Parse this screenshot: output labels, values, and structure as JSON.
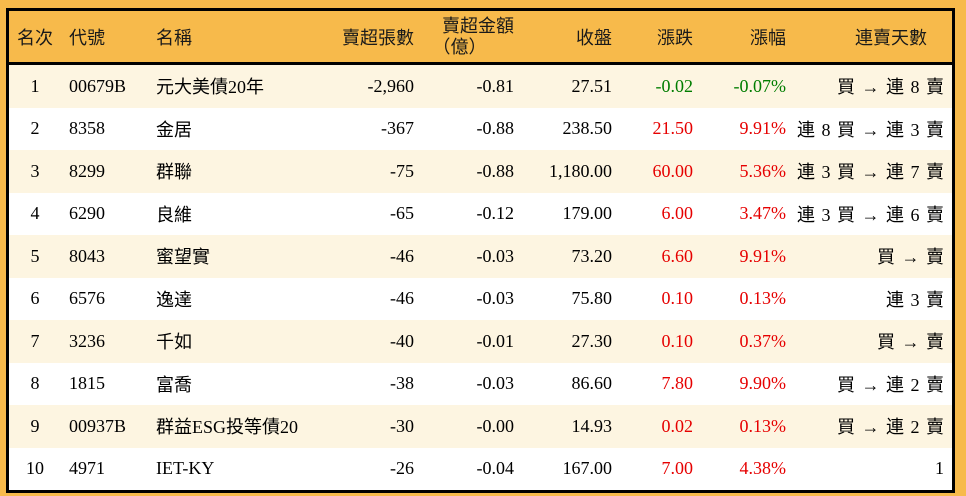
{
  "colors": {
    "background_orange": "#f7ba4b",
    "row_alt_cream": "#fdf5e1",
    "row_white": "#ffffff",
    "border_black": "#000000",
    "up_red": "#e60000",
    "down_green": "#007d00"
  },
  "table": {
    "headers": {
      "rank": "名次",
      "code": "代號",
      "name": "名稱",
      "sell_volume": "賣超張數",
      "sell_amount_line1": "賣超金額",
      "sell_amount_line2": "（億）",
      "close": "收盤",
      "change": "漲跌",
      "change_pct": "漲幅",
      "streak": "連賣天數"
    },
    "rows": [
      {
        "rank": "1",
        "code": "00679B",
        "name": "元大美債20年",
        "sell_volume": "-2,960",
        "sell_amount": "-0.81",
        "close": "27.51",
        "change": "-0.02",
        "change_pct": "-0.07%",
        "streak": "買 → 連 8 賣",
        "change_color": "green"
      },
      {
        "rank": "2",
        "code": "8358",
        "name": "金居",
        "sell_volume": "-367",
        "sell_amount": "-0.88",
        "close": "238.50",
        "change": "21.50",
        "change_pct": "9.91%",
        "streak": "連 8 買 → 連 3 賣",
        "change_color": "red"
      },
      {
        "rank": "3",
        "code": "8299",
        "name": "群聯",
        "sell_volume": "-75",
        "sell_amount": "-0.88",
        "close": "1,180.00",
        "change": "60.00",
        "change_pct": "5.36%",
        "streak": "連 3 買 → 連 7 賣",
        "change_color": "red"
      },
      {
        "rank": "4",
        "code": "6290",
        "name": "良維",
        "sell_volume": "-65",
        "sell_amount": "-0.12",
        "close": "179.00",
        "change": "6.00",
        "change_pct": "3.47%",
        "streak": "連 3 買 → 連 6 賣",
        "change_color": "red"
      },
      {
        "rank": "5",
        "code": "8043",
        "name": "蜜望實",
        "sell_volume": "-46",
        "sell_amount": "-0.03",
        "close": "73.20",
        "change": "6.60",
        "change_pct": "9.91%",
        "streak": "買 → 賣",
        "change_color": "red"
      },
      {
        "rank": "6",
        "code": "6576",
        "name": "逸達",
        "sell_volume": "-46",
        "sell_amount": "-0.03",
        "close": "75.80",
        "change": "0.10",
        "change_pct": "0.13%",
        "streak": "連 3 賣",
        "change_color": "red"
      },
      {
        "rank": "7",
        "code": "3236",
        "name": "千如",
        "sell_volume": "-40",
        "sell_amount": "-0.01",
        "close": "27.30",
        "change": "0.10",
        "change_pct": "0.37%",
        "streak": "買 → 賣",
        "change_color": "red"
      },
      {
        "rank": "8",
        "code": "1815",
        "name": "富喬",
        "sell_volume": "-38",
        "sell_amount": "-0.03",
        "close": "86.60",
        "change": "7.80",
        "change_pct": "9.90%",
        "streak": "買 → 連 2 賣",
        "change_color": "red"
      },
      {
        "rank": "9",
        "code": "00937B",
        "name": "群益ESG投等債20",
        "sell_volume": "-30",
        "sell_amount": "-0.00",
        "close": "14.93",
        "change": "0.02",
        "change_pct": "0.13%",
        "streak": "買 → 連 2 賣",
        "change_color": "red"
      },
      {
        "rank": "10",
        "code": "4971",
        "name": "IET-KY",
        "sell_volume": "-26",
        "sell_amount": "-0.04",
        "close": "167.00",
        "change": "7.00",
        "change_pct": "4.38%",
        "streak": "1",
        "change_color": "red"
      }
    ]
  }
}
